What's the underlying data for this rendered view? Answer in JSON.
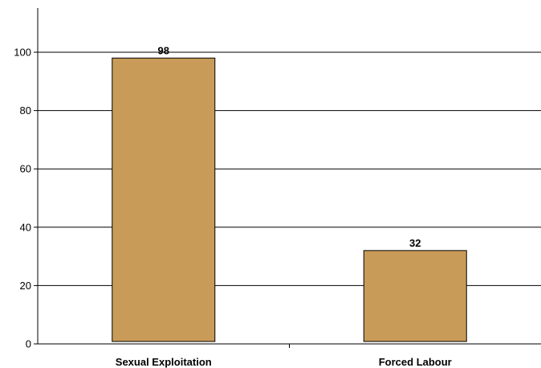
{
  "chart_data": {
    "type": "bar",
    "title": "",
    "xlabel": "",
    "ylabel": "",
    "categories": [
      "Sexual Exploitation",
      "Forced Labour"
    ],
    "values": [
      98,
      32
    ],
    "data_labels": [
      "98",
      "32"
    ],
    "ylim": [
      0,
      110
    ],
    "yticks": [
      0,
      20,
      40,
      60,
      80,
      100
    ],
    "ytick_labels": [
      "0",
      "20",
      "40",
      "60",
      "80",
      "100"
    ],
    "grid": true,
    "legend": "none",
    "colors": {
      "bar": "#C89B58",
      "bar_edge": "#000000",
      "grid": "#000000",
      "axis": "#000000"
    }
  }
}
